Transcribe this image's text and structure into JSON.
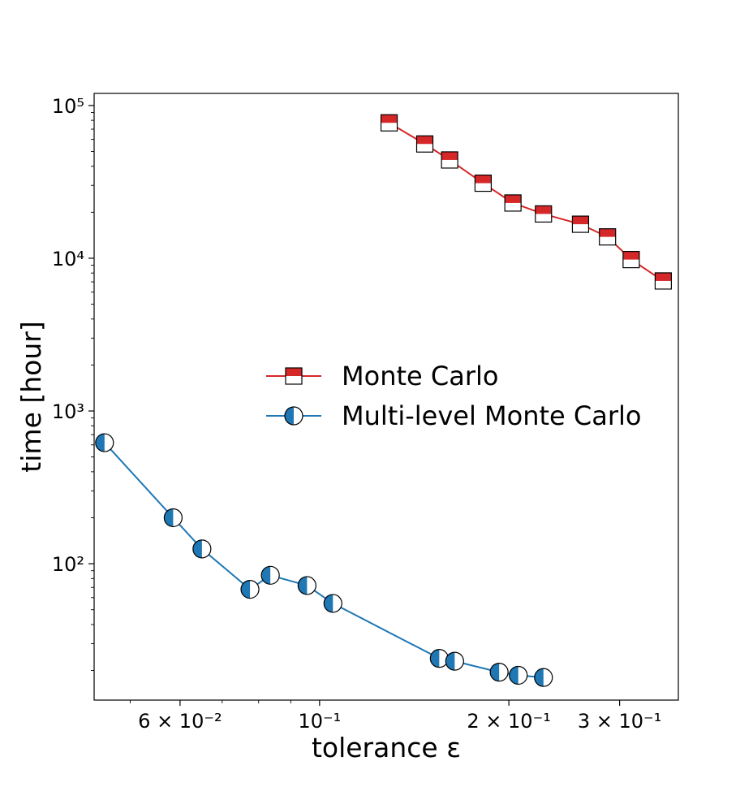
{
  "chart_data": {
    "type": "line",
    "title": "",
    "xlabel": "tolerance ε",
    "ylabel": "time [hour]",
    "x_scale": "log",
    "y_scale": "log",
    "xlim": [
      0.0438,
      0.372
    ],
    "ylim": [
      12.8,
      120000
    ],
    "grid": false,
    "legend_placement": "center-right",
    "x_ticks": [
      {
        "value": 0.06,
        "label": "6 × 10⁻²"
      },
      {
        "value": 0.1,
        "label": "10⁻¹"
      },
      {
        "value": 0.2,
        "label": "2 × 10⁻¹"
      },
      {
        "value": 0.3,
        "label": "3 × 10⁻¹"
      }
    ],
    "y_ticks": [
      {
        "value": 100,
        "label": "10²"
      },
      {
        "value": 1000,
        "label": "10³"
      },
      {
        "value": 10000,
        "label": "10⁴"
      },
      {
        "value": 100000,
        "label": "10⁵"
      }
    ],
    "series": [
      {
        "name": "Monte Carlo",
        "color": "#d62728",
        "marker": "square-half-top",
        "x": [
          0.129,
          0.147,
          0.161,
          0.182,
          0.203,
          0.227,
          0.26,
          0.287,
          0.313,
          0.352
        ],
        "y": [
          77000,
          56000,
          44000,
          31000,
          23000,
          19500,
          16700,
          13800,
          9800,
          7100
        ]
      },
      {
        "name": "Multi-level Monte Carlo",
        "color": "#1f77b4",
        "marker": "circle-half-left",
        "x": [
          0.0455,
          0.0585,
          0.065,
          0.0775,
          0.0835,
          0.0955,
          0.105,
          0.155,
          0.164,
          0.193,
          0.207,
          0.227
        ],
        "y": [
          620,
          200,
          125,
          68,
          84,
          72,
          55,
          24,
          23,
          19.5,
          18.6,
          18
        ]
      }
    ]
  }
}
